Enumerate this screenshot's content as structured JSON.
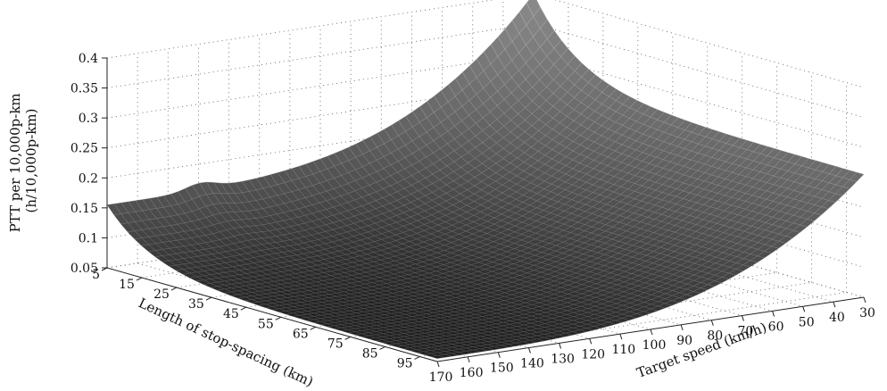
{
  "chart_data": {
    "type": "surface",
    "title": "",
    "zlabel_lines": [
      "PTT per 10,000p-km",
      "(h/10,000p-km)"
    ],
    "ylabel": "Length of stop-spacing (km)",
    "xlabel": "Target speed (km/h)",
    "z_ticks": [
      "0.05",
      "0.1",
      "0.15",
      "0.2",
      "0.25",
      "0.3",
      "0.35",
      "0.4"
    ],
    "y_ticks": [
      "5",
      "15",
      "25",
      "35",
      "45",
      "55",
      "65",
      "75",
      "85",
      "95"
    ],
    "x_ticks": [
      "170",
      "160",
      "150",
      "140",
      "130",
      "120",
      "110",
      "100",
      "90",
      "80",
      "70",
      "60",
      "50",
      "40",
      "30"
    ],
    "xlim": [
      30,
      170
    ],
    "ylim": [
      5,
      100
    ],
    "zlim": [
      0.05,
      0.4
    ],
    "grid": true,
    "colormap": "gray",
    "corner_values": [
      {
        "speed": 170,
        "spacing": 5,
        "ptt": 0.155
      },
      {
        "speed": 30,
        "spacing": 5,
        "ptt": 0.4
      },
      {
        "speed": 30,
        "spacing": 100,
        "ptt": 0.255
      },
      {
        "speed": 170,
        "spacing": 100,
        "ptt": 0.055
      }
    ]
  }
}
